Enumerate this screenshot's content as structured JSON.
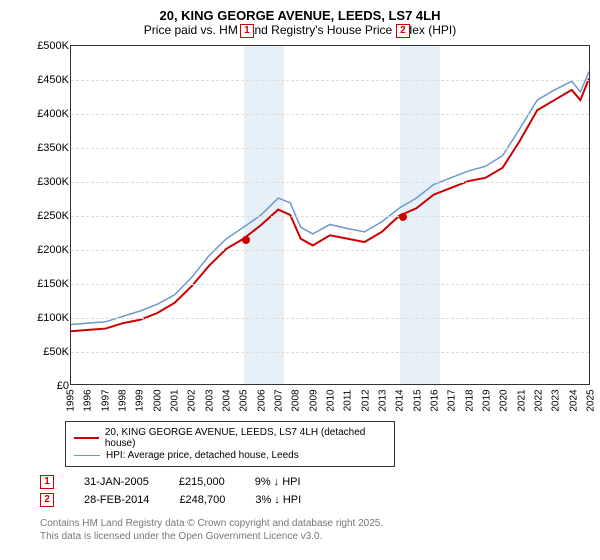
{
  "title": "20, KING GEORGE AVENUE, LEEDS, LS7 4LH",
  "subtitle": "Price paid vs. HM Land Registry's House Price Index (HPI)",
  "chart": {
    "type": "line",
    "x_years": [
      1995,
      1996,
      1997,
      1998,
      1999,
      2000,
      2001,
      2002,
      2003,
      2004,
      2005,
      2006,
      2007,
      2008,
      2009,
      2010,
      2011,
      2012,
      2013,
      2014,
      2015,
      2016,
      2017,
      2018,
      2019,
      2020,
      2021,
      2022,
      2023,
      2024,
      2025
    ],
    "ylim": [
      0,
      500000
    ],
    "ytick_step": 50000,
    "ytick_labels": [
      "£0",
      "£50K",
      "£100K",
      "£150K",
      "£200K",
      "£250K",
      "£300K",
      "£350K",
      "£400K",
      "£450K",
      "£500K"
    ],
    "background_color": "#ffffff",
    "grid_color": "#dddddd",
    "shade_color": "#d6e4f0",
    "shade_ranges": [
      [
        2005,
        2007.3
      ],
      [
        2014,
        2016.3
      ]
    ],
    "series": [
      {
        "name": "price_paid",
        "label": "20, KING GEORGE AVENUE, LEEDS, LS7 4LH (detached house)",
        "color": "#cc0000",
        "line_width": 2,
        "x": [
          1995,
          1996,
          1997,
          1998,
          1999,
          2000,
          2001,
          2002,
          2003,
          2004,
          2005,
          2006,
          2007,
          2007.7,
          2008.3,
          2009,
          2010,
          2011,
          2012,
          2013,
          2014,
          2015,
          2016,
          2017,
          2018,
          2019,
          2020,
          2021,
          2022,
          2023,
          2024,
          2024.5,
          2025
        ],
        "y": [
          78000,
          80000,
          82000,
          90000,
          95000,
          105000,
          120000,
          145000,
          175000,
          200000,
          215000,
          235000,
          258000,
          250000,
          215000,
          205000,
          220000,
          215000,
          210000,
          225000,
          248700,
          260000,
          280000,
          290000,
          300000,
          305000,
          320000,
          360000,
          405000,
          420000,
          435000,
          420000,
          452000
        ]
      },
      {
        "name": "hpi",
        "label": "HPI: Average price, detached house, Leeds",
        "color": "#6b99cc",
        "line_width": 1.5,
        "x": [
          1995,
          1996,
          1997,
          1998,
          1999,
          2000,
          2001,
          2002,
          2003,
          2004,
          2005,
          2006,
          2007,
          2007.7,
          2008.3,
          2009,
          2010,
          2011,
          2012,
          2013,
          2014,
          2015,
          2016,
          2017,
          2018,
          2019,
          2020,
          2021,
          2022,
          2023,
          2024,
          2024.5,
          2025
        ],
        "y": [
          88000,
          90000,
          92000,
          100000,
          108000,
          118000,
          132000,
          158000,
          190000,
          215000,
          232000,
          250000,
          275000,
          268000,
          232000,
          222000,
          236000,
          230000,
          225000,
          240000,
          260000,
          275000,
          295000,
          305000,
          315000,
          322000,
          338000,
          378000,
          420000,
          435000,
          448000,
          432000,
          462000
        ]
      }
    ],
    "markers": [
      {
        "id": "1",
        "top_x": 2005.15,
        "dot_x": 2005.08,
        "dot_y": 215000
      },
      {
        "id": "2",
        "top_x": 2014.15,
        "dot_x": 2014.15,
        "dot_y": 248700
      }
    ]
  },
  "sale_rows": [
    {
      "id": "1",
      "date": "31-JAN-2005",
      "price": "£215,000",
      "delta": "9% ↓ HPI"
    },
    {
      "id": "2",
      "date": "28-FEB-2014",
      "price": "£248,700",
      "delta": "3% ↓ HPI"
    }
  ],
  "attribution_line1": "Contains HM Land Registry data © Crown copyright and database right 2025.",
  "attribution_line2": "This data is licensed under the Open Government Licence v3.0."
}
